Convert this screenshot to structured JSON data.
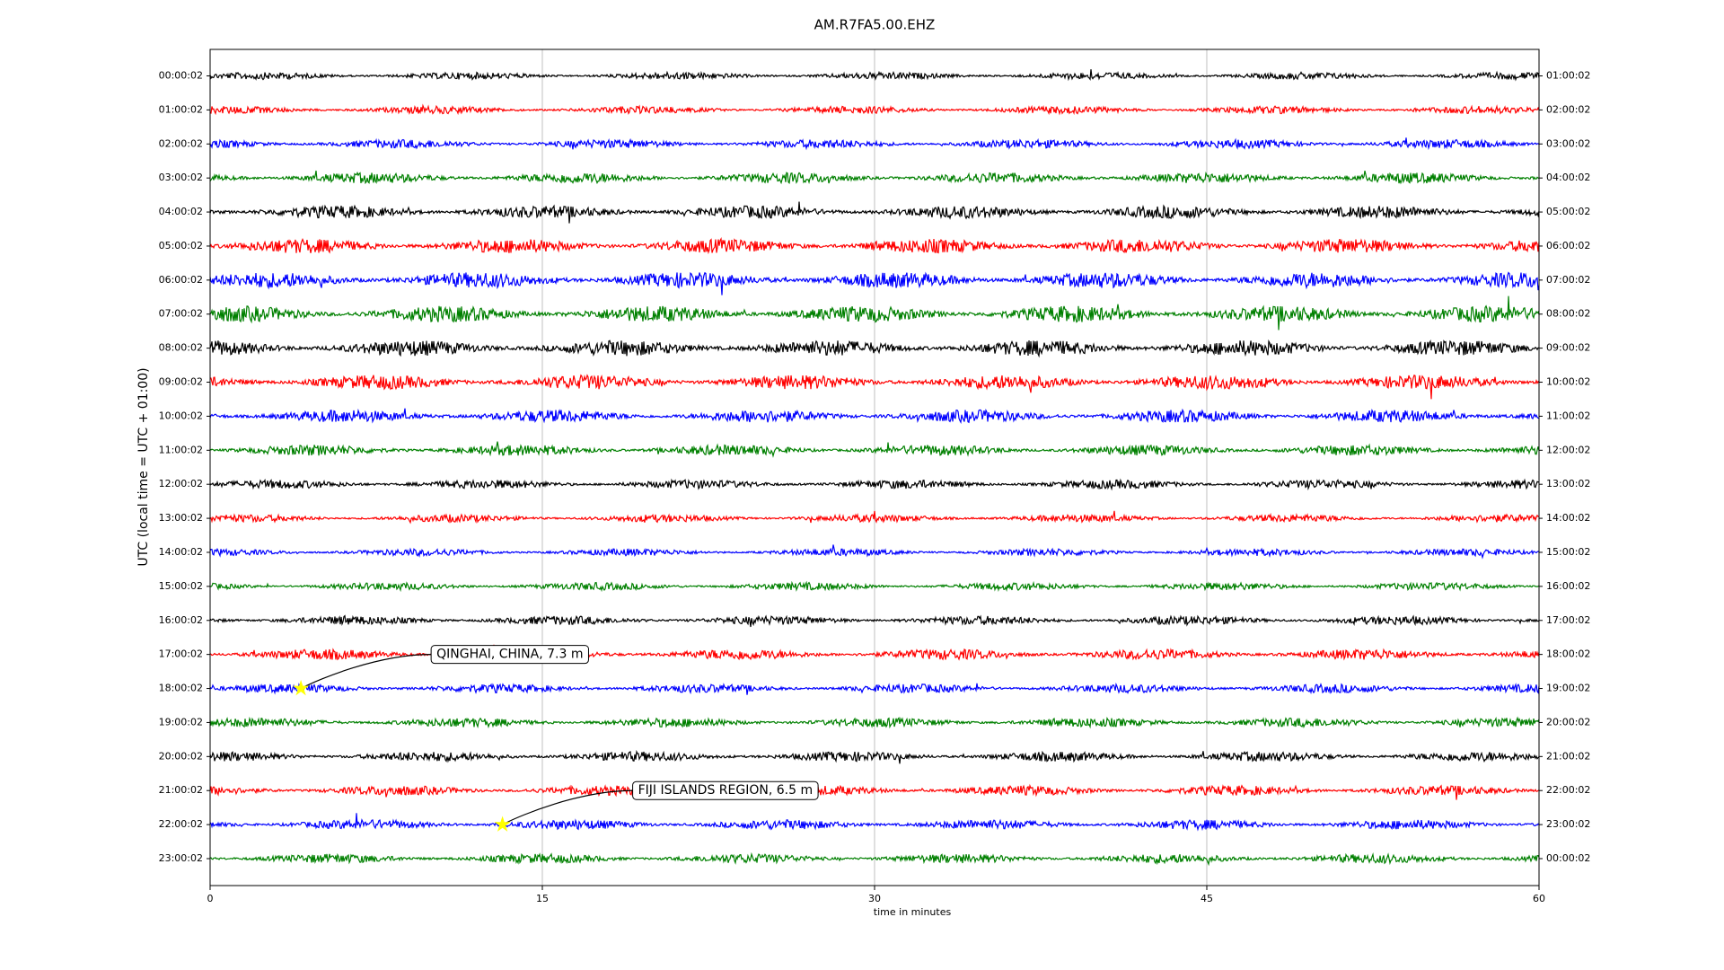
{
  "chart_data": {
    "type": "dayplot",
    "title": "AM.R7FA5.00.EHZ",
    "x_label": "time in minutes",
    "y_label": "UTC (local time = UTC + 01:00)",
    "xlim": [
      0,
      60
    ],
    "xticks": [
      0,
      15,
      30,
      45,
      60
    ],
    "grid": true,
    "series": [
      {
        "name": "00:00:02",
        "right_label": "01:00:02",
        "color": "#000000"
      },
      {
        "name": "01:00:02",
        "right_label": "02:00:02",
        "color": "#ff0000"
      },
      {
        "name": "02:00:02",
        "right_label": "03:00:02",
        "color": "#0000ff"
      },
      {
        "name": "03:00:02",
        "right_label": "04:00:02",
        "color": "#008000"
      },
      {
        "name": "04:00:02",
        "right_label": "05:00:02",
        "color": "#000000"
      },
      {
        "name": "05:00:02",
        "right_label": "06:00:02",
        "color": "#ff0000"
      },
      {
        "name": "06:00:02",
        "right_label": "07:00:02",
        "color": "#0000ff"
      },
      {
        "name": "07:00:02",
        "right_label": "08:00:02",
        "color": "#008000"
      },
      {
        "name": "08:00:02",
        "right_label": "09:00:02",
        "color": "#000000"
      },
      {
        "name": "09:00:02",
        "right_label": "10:00:02",
        "color": "#ff0000"
      },
      {
        "name": "10:00:02",
        "right_label": "11:00:02",
        "color": "#0000ff"
      },
      {
        "name": "11:00:02",
        "right_label": "12:00:02",
        "color": "#008000"
      },
      {
        "name": "12:00:02",
        "right_label": "13:00:02",
        "color": "#000000"
      },
      {
        "name": "13:00:02",
        "right_label": "14:00:02",
        "color": "#ff0000"
      },
      {
        "name": "14:00:02",
        "right_label": "15:00:02",
        "color": "#0000ff"
      },
      {
        "name": "15:00:02",
        "right_label": "16:00:02",
        "color": "#008000"
      },
      {
        "name": "16:00:02",
        "right_label": "17:00:02",
        "color": "#000000"
      },
      {
        "name": "17:00:02",
        "right_label": "18:00:02",
        "color": "#ff0000"
      },
      {
        "name": "18:00:02",
        "right_label": "19:00:02",
        "color": "#0000ff"
      },
      {
        "name": "19:00:02",
        "right_label": "20:00:02",
        "color": "#008000"
      },
      {
        "name": "20:00:02",
        "right_label": "21:00:02",
        "color": "#000000"
      },
      {
        "name": "21:00:02",
        "right_label": "22:00:02",
        "color": "#ff0000"
      },
      {
        "name": "22:00:02",
        "right_label": "23:00:02",
        "color": "#0000ff"
      },
      {
        "name": "23:00:02",
        "right_label": "00:00:02",
        "color": "#008000"
      }
    ],
    "annotations": [
      {
        "text": "QINGHAI, CHINA, 7.3 m",
        "x": 4.1,
        "row": 18,
        "marker_color": "#ffff00"
      },
      {
        "text": "FIJI ISLANDS REGION, 6.5 m",
        "x": 13.2,
        "row": 22,
        "marker_color": "#ffff00"
      }
    ]
  }
}
